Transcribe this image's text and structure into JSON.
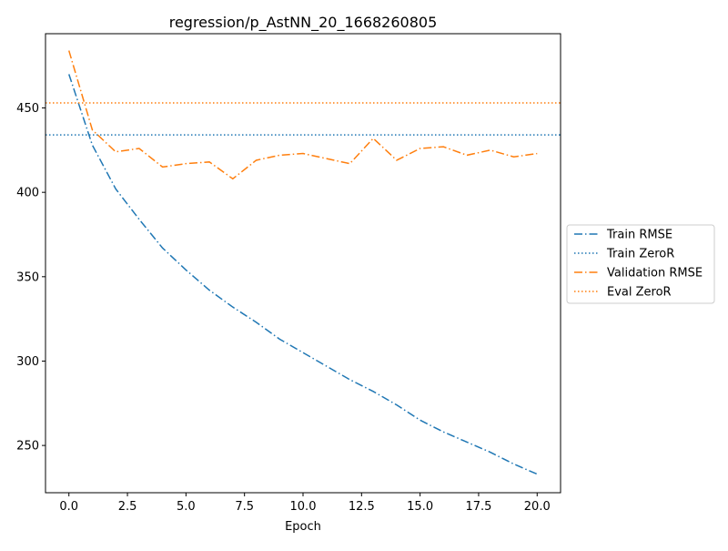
{
  "chart_data": {
    "type": "line",
    "title": "regression/p_AstNN_20_1668260805",
    "xlabel": "Epoch",
    "ylabel": "",
    "xlim": [
      -1,
      21
    ],
    "ylim": [
      222,
      494
    ],
    "xticks": [
      0.0,
      2.5,
      5.0,
      7.5,
      10.0,
      12.5,
      15.0,
      17.5,
      20.0
    ],
    "xtick_labels": [
      "0.0",
      "2.5",
      "5.0",
      "7.5",
      "10.0",
      "12.5",
      "15.0",
      "17.5",
      "20.0"
    ],
    "yticks": [
      250,
      300,
      350,
      400,
      450
    ],
    "ytick_labels": [
      "250",
      "300",
      "350",
      "400",
      "450"
    ],
    "grid": false,
    "legend_position": "outside-right",
    "series": [
      {
        "name": "Train RMSE",
        "kind": "line",
        "style": "dashdot",
        "color": "#1f77b4",
        "x": [
          0,
          1,
          2,
          3,
          4,
          5,
          6,
          7,
          8,
          9,
          10,
          11,
          12,
          13,
          14,
          15,
          16,
          17,
          18,
          19,
          20
        ],
        "y": [
          470,
          428,
          402,
          384,
          367,
          354,
          342,
          332,
          323,
          313,
          305,
          297,
          289,
          282,
          274,
          265,
          258,
          252,
          246,
          239,
          233
        ]
      },
      {
        "name": "Train ZeroR",
        "kind": "hline",
        "style": "dotted",
        "color": "#1f77b4",
        "y": 434
      },
      {
        "name": "Validation RMSE",
        "kind": "line",
        "style": "dashdot",
        "color": "#ff7f0e",
        "x": [
          0,
          1,
          2,
          3,
          4,
          5,
          6,
          7,
          8,
          9,
          10,
          11,
          12,
          13,
          14,
          15,
          16,
          17,
          18,
          19,
          20
        ],
        "y": [
          484,
          437,
          424,
          426,
          415,
          417,
          418,
          408,
          419,
          422,
          423,
          420,
          417,
          432,
          419,
          426,
          427,
          422,
          425,
          421,
          423
        ]
      },
      {
        "name": "Eval ZeroR",
        "kind": "hline",
        "style": "dotted",
        "color": "#ff7f0e",
        "y": 453
      }
    ]
  }
}
